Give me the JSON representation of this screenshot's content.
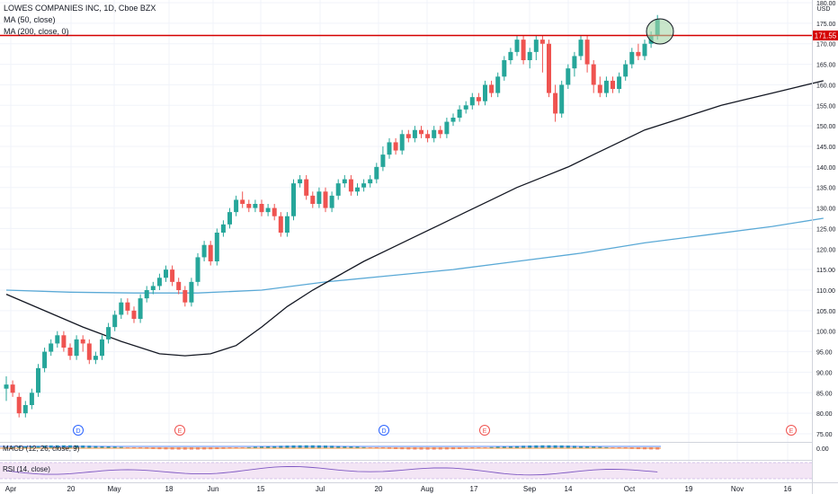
{
  "header": {
    "symbol_line": "LOWES COMPANIES INC, 1D, Cboe BZX",
    "ma50_label": "MA (50, close)",
    "ma200_label": "MA (200, close, 0)"
  },
  "price_scale": {
    "currency": "USD",
    "current_price_label": "171.55",
    "macd_zero_label": "0.00"
  },
  "indicators": {
    "macd_label": "MACD (12, 26, close, 9)",
    "rsi_label": "RSI (14, close)"
  },
  "events": [
    {
      "type": "D",
      "label": "D"
    },
    {
      "type": "E",
      "label": "E"
    },
    {
      "type": "D",
      "label": "D"
    },
    {
      "type": "E",
      "label": "E"
    },
    {
      "type": "E",
      "label": "E"
    }
  ],
  "colors": {
    "up": "#26a69a",
    "down": "#ef5350",
    "ma50": "#131722",
    "ma200": "#5aa9d6",
    "resistance": "#d50000",
    "highlight_fill": "#a5d6a7",
    "rsi_band": "#f3e5f5",
    "rsi_line": "#7e57c2",
    "grid": "#f0f3fa"
  },
  "chart_data": {
    "type": "candlestick",
    "title": "LOWES COMPANIES INC, 1D, Cboe BZX",
    "y_axis": {
      "range": [
        73,
        183
      ],
      "ticks": [
        75,
        80,
        85,
        90,
        95,
        100,
        105,
        110,
        115,
        120,
        125,
        130,
        135,
        140,
        145,
        150,
        155,
        160,
        165,
        170,
        175,
        180
      ],
      "tick_labels": [
        "75.00",
        "80.00",
        "85.00",
        "90.00",
        "95.00",
        "100.00",
        "105.00",
        "110.00",
        "115.00",
        "120.00",
        "125.00",
        "130.00",
        "135.00",
        "140.00",
        "145.00",
        "150.00",
        "155.00",
        "160.00",
        "165.00",
        "170.00",
        "175.00",
        "180.00"
      ]
    },
    "x_axis": {
      "tick_labels": [
        "Apr",
        "20",
        "May",
        "18",
        "Jun",
        "15",
        "Jul",
        "20",
        "Aug",
        "17",
        "Sep",
        "14",
        "Oct",
        "19",
        "Nov",
        "16"
      ]
    },
    "resistance_level": 171.55,
    "series": [
      {
        "name": "MA (50, close)",
        "type": "line",
        "values": [
          [
            0,
            109
          ],
          [
            6,
            105
          ],
          [
            12,
            101
          ],
          [
            18,
            97.5
          ],
          [
            24,
            94.5
          ],
          [
            28,
            94
          ],
          [
            32,
            94.5
          ],
          [
            36,
            96.5
          ],
          [
            40,
            101
          ],
          [
            44,
            106
          ],
          [
            48,
            110
          ],
          [
            52,
            113.5
          ],
          [
            56,
            117
          ],
          [
            60,
            120
          ],
          [
            64,
            123
          ],
          [
            68,
            126
          ],
          [
            72,
            129
          ],
          [
            76,
            132
          ],
          [
            80,
            135
          ],
          [
            84,
            137.5
          ],
          [
            88,
            140
          ],
          [
            92,
            143
          ],
          [
            96,
            146
          ],
          [
            100,
            149
          ],
          [
            104,
            151
          ],
          [
            108,
            153
          ],
          [
            112,
            155
          ],
          [
            116,
            156.5
          ],
          [
            120,
            158
          ],
          [
            124,
            159.5
          ],
          [
            128,
            161
          ]
        ]
      },
      {
        "name": "MA (200, close, 0)",
        "type": "line",
        "values": [
          [
            0,
            110
          ],
          [
            10,
            109.5
          ],
          [
            20,
            109.3
          ],
          [
            30,
            109.3
          ],
          [
            40,
            110
          ],
          [
            50,
            112
          ],
          [
            60,
            113.5
          ],
          [
            70,
            115
          ],
          [
            80,
            117
          ],
          [
            90,
            119
          ],
          [
            100,
            121.5
          ],
          [
            110,
            123.5
          ],
          [
            120,
            125.5
          ],
          [
            128,
            127.5
          ]
        ]
      },
      {
        "name": "LOW",
        "type": "candlestick",
        "candles": [
          [
            0,
            86,
            87,
            83,
            89
          ],
          [
            1,
            87,
            85,
            84,
            88
          ],
          [
            2,
            84,
            80,
            79,
            85
          ],
          [
            3,
            80,
            82,
            79,
            83
          ],
          [
            4,
            82,
            85,
            81,
            86
          ],
          [
            5,
            85,
            91,
            84,
            92
          ],
          [
            6,
            91,
            95,
            90,
            96
          ],
          [
            7,
            95,
            97,
            94,
            98
          ],
          [
            8,
            97,
            99,
            96,
            100
          ],
          [
            9,
            99,
            96,
            95,
            100
          ],
          [
            10,
            96,
            94,
            93,
            97
          ],
          [
            11,
            94,
            98,
            93,
            99
          ],
          [
            12,
            98,
            97,
            95,
            99
          ],
          [
            13,
            97,
            93,
            92,
            98
          ],
          [
            14,
            93,
            94,
            92,
            95
          ],
          [
            15,
            94,
            98,
            93,
            99
          ],
          [
            16,
            98,
            101,
            97,
            102
          ],
          [
            17,
            101,
            104,
            100,
            105
          ],
          [
            18,
            104,
            107,
            103,
            108
          ],
          [
            19,
            107,
            105,
            104,
            108
          ],
          [
            20,
            105,
            103,
            102,
            106
          ],
          [
            21,
            103,
            108,
            102,
            109
          ],
          [
            22,
            108,
            110,
            107,
            111
          ],
          [
            23,
            110,
            111,
            109,
            112
          ],
          [
            24,
            111,
            113,
            110,
            114
          ],
          [
            25,
            113,
            115,
            112,
            116
          ],
          [
            26,
            115,
            112,
            111,
            116
          ],
          [
            27,
            112,
            110,
            109,
            113
          ],
          [
            28,
            110,
            107,
            106,
            111
          ],
          [
            29,
            107,
            112,
            106,
            113
          ],
          [
            30,
            112,
            118,
            111,
            119
          ],
          [
            31,
            118,
            121,
            117,
            122
          ],
          [
            32,
            121,
            117,
            116,
            122
          ],
          [
            33,
            117,
            124,
            116,
            125
          ],
          [
            34,
            124,
            126,
            123,
            127
          ],
          [
            35,
            126,
            129,
            125,
            130
          ],
          [
            36,
            129,
            132,
            128,
            133
          ],
          [
            37,
            132,
            131,
            130,
            134
          ],
          [
            38,
            131,
            130,
            129,
            132
          ],
          [
            39,
            130,
            131,
            129,
            132
          ],
          [
            40,
            131,
            129,
            128,
            132
          ],
          [
            41,
            129,
            130,
            128,
            131
          ],
          [
            42,
            130,
            128,
            127,
            131
          ],
          [
            43,
            128,
            124,
            123,
            129
          ],
          [
            44,
            124,
            128,
            123,
            129
          ],
          [
            45,
            128,
            136,
            127,
            137
          ],
          [
            46,
            136,
            137,
            135,
            138
          ],
          [
            47,
            137,
            133,
            132,
            138
          ],
          [
            48,
            133,
            131,
            130,
            134
          ],
          [
            49,
            131,
            134,
            130,
            135
          ],
          [
            50,
            134,
            130,
            129,
            135
          ],
          [
            51,
            130,
            133,
            129,
            134
          ],
          [
            52,
            133,
            136,
            132,
            137
          ],
          [
            53,
            136,
            137,
            135,
            138
          ],
          [
            54,
            137,
            134,
            133,
            138
          ],
          [
            55,
            134,
            135,
            133,
            136
          ],
          [
            56,
            135,
            136,
            134,
            137
          ],
          [
            57,
            136,
            137,
            135,
            138
          ],
          [
            58,
            137,
            140,
            136,
            141
          ],
          [
            59,
            140,
            143,
            139,
            145
          ],
          [
            60,
            143,
            146,
            142,
            147
          ],
          [
            61,
            146,
            144,
            143,
            147
          ],
          [
            62,
            144,
            148,
            143,
            149
          ],
          [
            63,
            148,
            147,
            146,
            149
          ],
          [
            64,
            147,
            149,
            146,
            150
          ],
          [
            65,
            149,
            148,
            147,
            150
          ],
          [
            66,
            148,
            147,
            146,
            149
          ],
          [
            67,
            147,
            149,
            146,
            150
          ],
          [
            68,
            149,
            148,
            147,
            150
          ],
          [
            69,
            148,
            151,
            147,
            152
          ],
          [
            70,
            151,
            152,
            150,
            153
          ],
          [
            71,
            152,
            154,
            151,
            155
          ],
          [
            72,
            154,
            155,
            153,
            156
          ],
          [
            73,
            155,
            157,
            154,
            158
          ],
          [
            74,
            157,
            156,
            155,
            158
          ],
          [
            75,
            156,
            160,
            155,
            161
          ],
          [
            76,
            160,
            158,
            157,
            161
          ],
          [
            77,
            158,
            162,
            157,
            163
          ],
          [
            78,
            162,
            166,
            161,
            167
          ],
          [
            79,
            166,
            168,
            165,
            169
          ],
          [
            80,
            168,
            171,
            167,
            172
          ],
          [
            81,
            171,
            166,
            165,
            172
          ],
          [
            82,
            166,
            168,
            164,
            169
          ],
          [
            83,
            168,
            171,
            166,
            172
          ],
          [
            84,
            171,
            170,
            163,
            172
          ],
          [
            85,
            170,
            158,
            157,
            171
          ],
          [
            86,
            158,
            153,
            151,
            160
          ],
          [
            87,
            153,
            160,
            152,
            161
          ],
          [
            88,
            160,
            164,
            159,
            165
          ],
          [
            89,
            164,
            167,
            162,
            168
          ],
          [
            90,
            167,
            171,
            166,
            172
          ],
          [
            91,
            171,
            165,
            163,
            172
          ],
          [
            92,
            165,
            160,
            158,
            166
          ],
          [
            93,
            160,
            158,
            157,
            162
          ],
          [
            94,
            158,
            161,
            157,
            162
          ],
          [
            95,
            161,
            159,
            158,
            162
          ],
          [
            96,
            159,
            162,
            158,
            163
          ],
          [
            97,
            162,
            165,
            161,
            166
          ],
          [
            98,
            165,
            168,
            164,
            169
          ],
          [
            99,
            168,
            167,
            166,
            170
          ],
          [
            100,
            167,
            170,
            166,
            171
          ],
          [
            101,
            170,
            172,
            169,
            173
          ],
          [
            102,
            172,
            176,
            171,
            177
          ]
        ]
      }
    ]
  }
}
